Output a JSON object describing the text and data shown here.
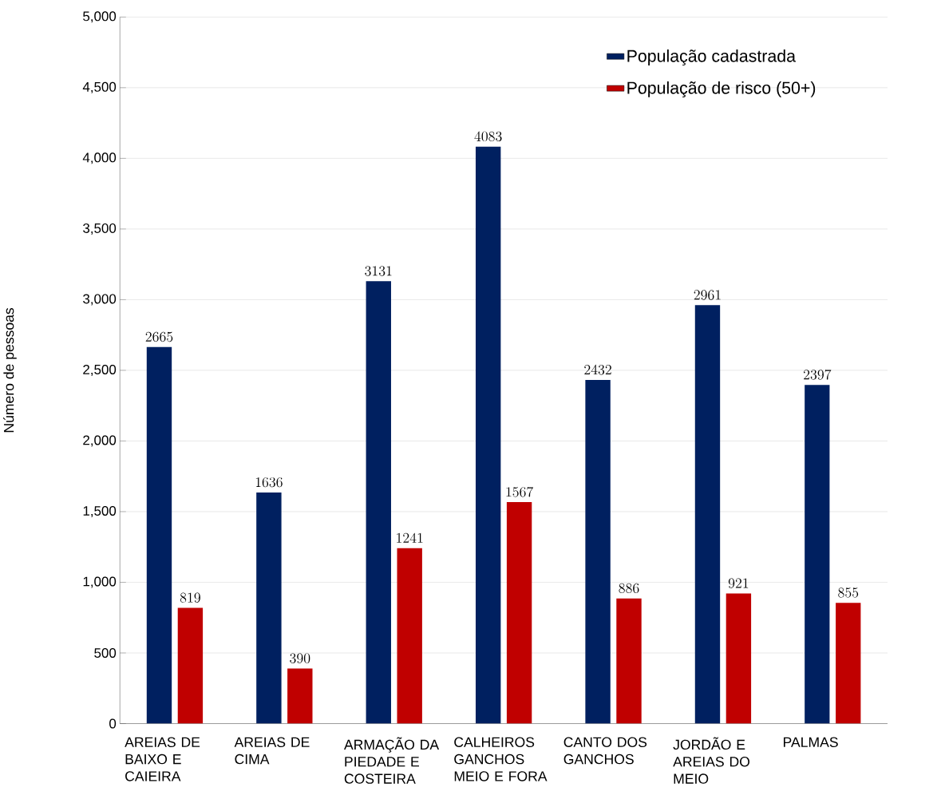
{
  "chart_data": {
    "type": "bar",
    "ylabel": "Número de pessoas",
    "categories": [
      "AREIAS DE BAIXO E CAIEIRA",
      "AREIAS DE CIMA",
      "ARMAÇÃO DA PIEDADE E COSTEIRA",
      "CALHEIROS GANCHOS MEIO E FORA",
      "CANTO DOS GANCHOS",
      "JORDÃO E AREIAS DO MEIO",
      "PALMAS"
    ],
    "series": [
      {
        "name": "População cadastrada",
        "color": "#002060",
        "values": [
          2665,
          1636,
          3131,
          4083,
          2432,
          2961,
          2397
        ]
      },
      {
        "name": "População de risco (50+)",
        "color": "#c00000",
        "values": [
          819,
          390,
          1241,
          1567,
          886,
          921,
          855
        ]
      }
    ],
    "ylim": [
      0,
      5000
    ],
    "yticks": [
      0,
      500,
      {
        "value": 1000,
        "label": "1,000"
      },
      {
        "value": 1500,
        "label": "1,500"
      },
      {
        "value": 2000,
        "label": "2,000"
      },
      {
        "value": 2500,
        "label": "2,500"
      },
      {
        "value": 3000,
        "label": "3,000"
      },
      {
        "value": 3500,
        "label": "3,500"
      },
      {
        "value": 4000,
        "label": "4,000"
      },
      {
        "value": 4500,
        "label": "4,500"
      },
      {
        "value": 5000,
        "label": "5,000"
      }
    ],
    "grid": "y",
    "legend": "top right",
    "data_labels": true
  }
}
